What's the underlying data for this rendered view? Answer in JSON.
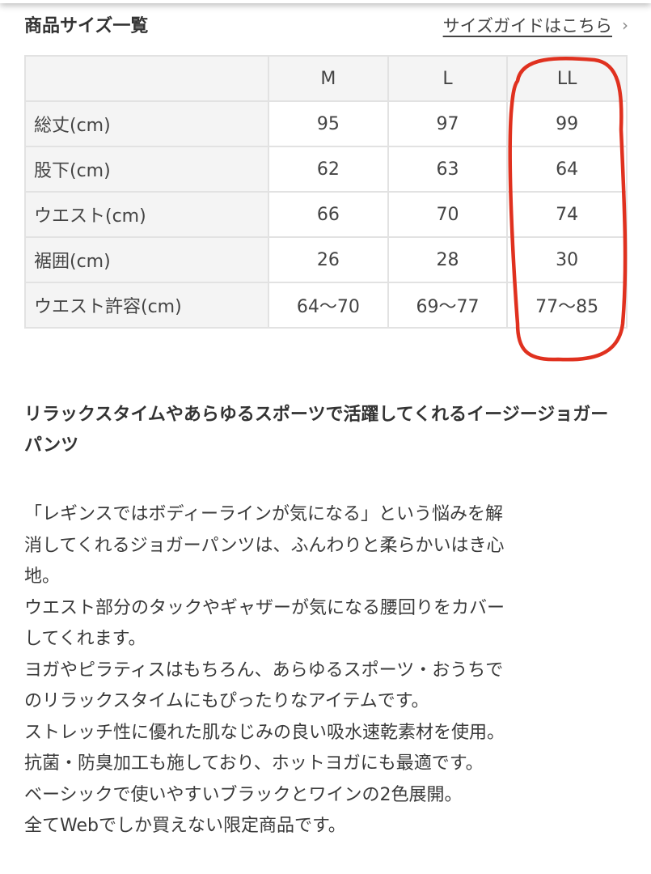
{
  "header": {
    "title": "商品サイズ一覧",
    "guide_link": "サイズガイドはこちら",
    "guide_chevron": "›"
  },
  "size_table": {
    "columns": [
      "",
      "M",
      "L",
      "LL"
    ],
    "rows": [
      {
        "label": "総丈(cm)",
        "values": [
          "95",
          "97",
          "99"
        ]
      },
      {
        "label": "股下(cm)",
        "values": [
          "62",
          "63",
          "64"
        ]
      },
      {
        "label": "ウエスト(cm)",
        "values": [
          "66",
          "70",
          "74"
        ]
      },
      {
        "label": "裾囲(cm)",
        "values": [
          "26",
          "28",
          "30"
        ]
      },
      {
        "label": "ウエスト許容(cm)",
        "values": [
          "64〜70",
          "69〜77",
          "77〜85"
        ]
      }
    ],
    "highlight_color": "#e0311f"
  },
  "description": {
    "lead": "リラックスタイムやあらゆるスポーツで活躍してくれるイージージョガーパンツ",
    "lines": [
      "「レギンスではボディーラインが気になる」という悩みを解",
      "消してくれるジョガーパンツは、ふんわりと柔らかいはき心",
      "地。",
      "ウエスト部分のタックやギャザーが気になる腰回りをカバー",
      "してくれます。",
      "ヨガやピラティスはもちろん、あらゆるスポーツ・おうちで",
      "のリラックスタイムにもぴったりなアイテムです。",
      "ストレッチ性に優れた肌なじみの良い吸水速乾素材を使用。",
      "抗菌・防臭加工も施しており、ホットヨガにも最適です。",
      "ベーシックで使いやすいブラックとワインの2色展開。",
      "全てWebでしか買えない限定商品です。"
    ]
  }
}
